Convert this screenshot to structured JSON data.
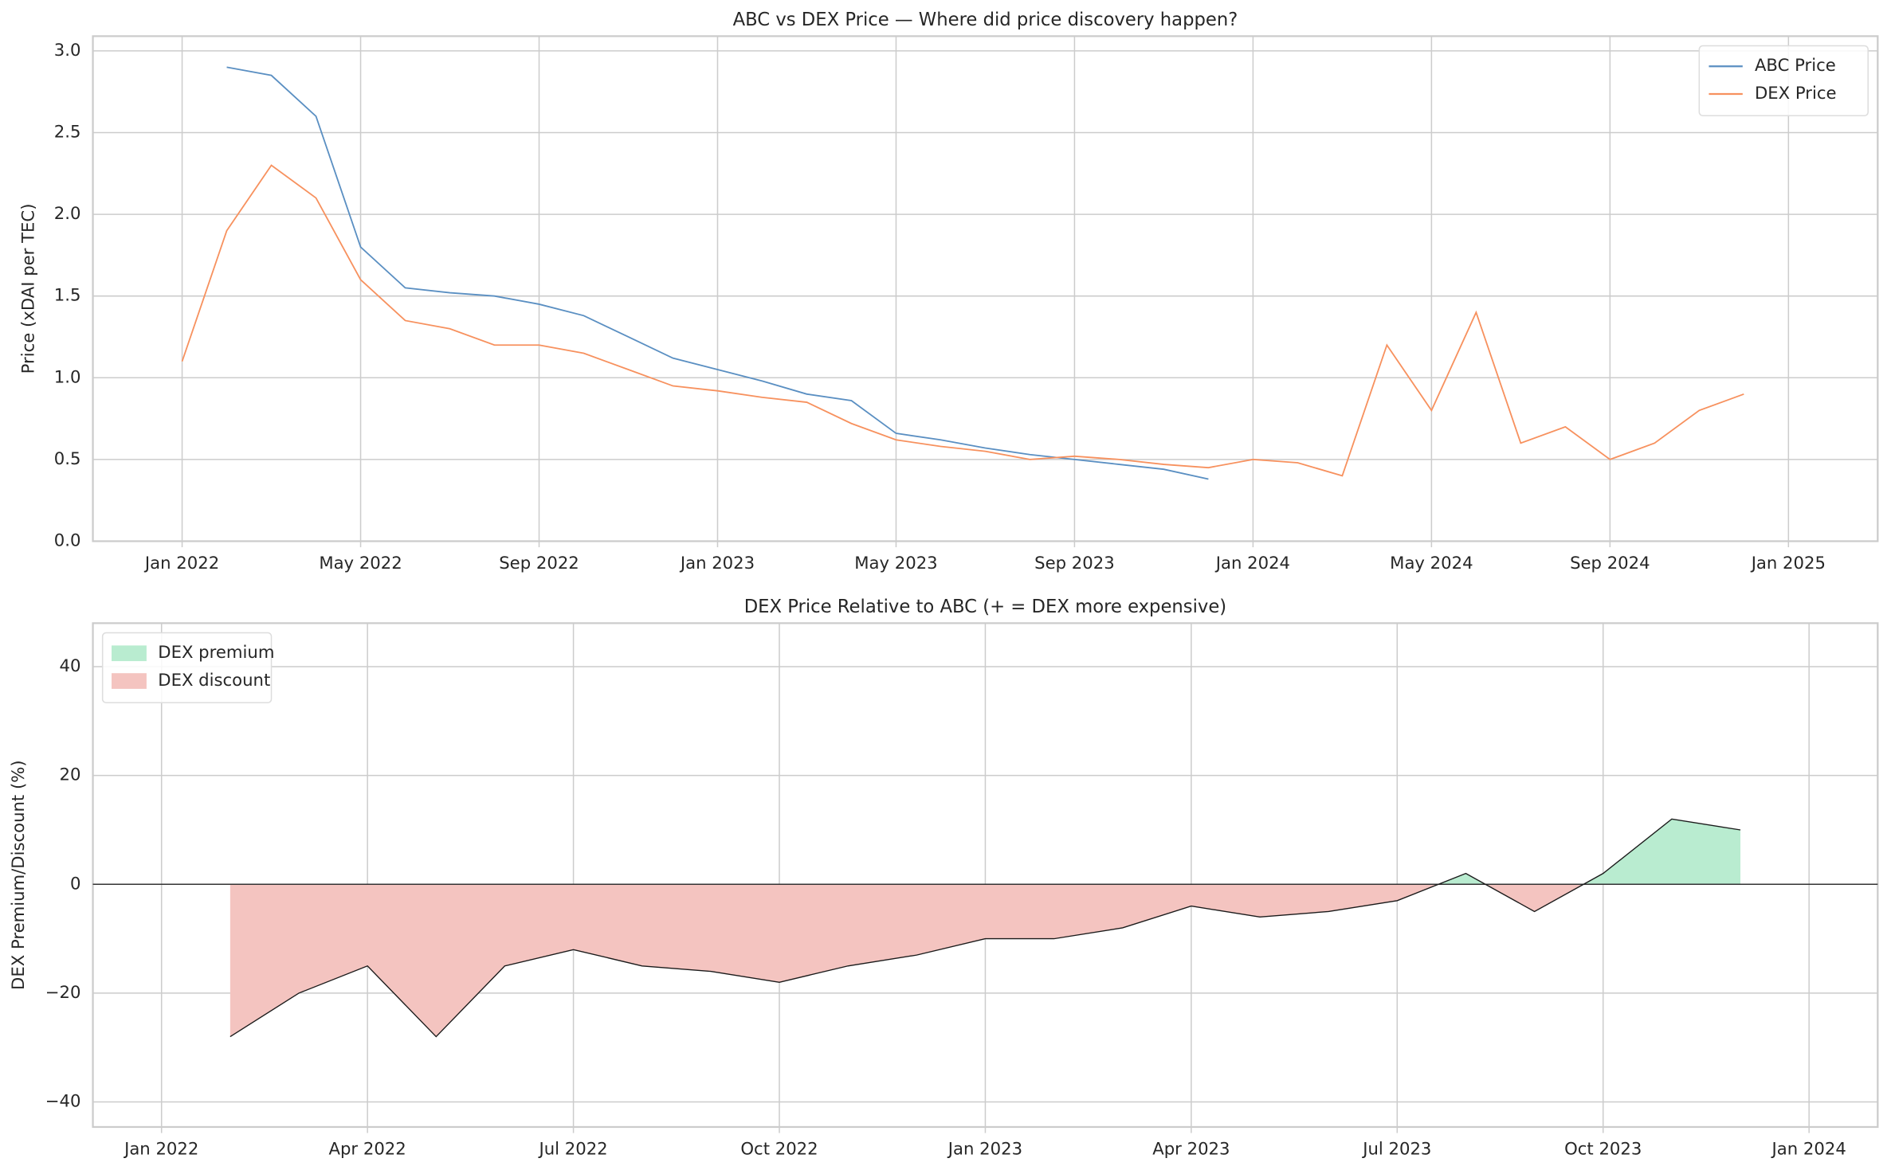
{
  "chart_data": [
    {
      "type": "line",
      "title": "ABC vs DEX Price — Where did price discovery happen?",
      "y_label": "Price (xDAI per TEC)",
      "x": [
        "2022-01",
        "2022-02",
        "2022-03",
        "2022-04",
        "2022-05",
        "2022-06",
        "2022-07",
        "2022-08",
        "2022-09",
        "2022-10",
        "2022-11",
        "2022-12",
        "2023-01",
        "2023-02",
        "2023-03",
        "2023-04",
        "2023-05",
        "2023-06",
        "2023-07",
        "2023-08",
        "2023-09",
        "2023-10",
        "2023-11",
        "2023-12",
        "2024-01",
        "2024-02",
        "2024-03",
        "2024-04",
        "2024-05",
        "2024-06",
        "2024-07",
        "2024-08",
        "2024-09",
        "2024-10",
        "2024-11",
        "2024-12"
      ],
      "series": [
        {
          "name": "ABC Price",
          "color": "#5a8fc2",
          "values": [
            null,
            2.9,
            2.85,
            2.6,
            1.8,
            1.55,
            1.52,
            1.5,
            1.45,
            1.38,
            1.25,
            1.12,
            1.05,
            0.98,
            0.9,
            0.86,
            0.66,
            0.62,
            0.57,
            0.53,
            0.5,
            0.47,
            0.44,
            0.38,
            null,
            null,
            null,
            null,
            null,
            null,
            null,
            null,
            null,
            null,
            null,
            null
          ]
        },
        {
          "name": "DEX Price",
          "color": "#f7915e",
          "values": [
            1.1,
            1.9,
            2.3,
            2.1,
            1.6,
            1.35,
            1.3,
            1.2,
            1.2,
            1.15,
            1.05,
            0.95,
            0.92,
            0.88,
            0.85,
            0.72,
            0.62,
            0.58,
            0.55,
            0.5,
            0.52,
            0.5,
            0.47,
            0.45,
            0.5,
            0.48,
            0.4,
            1.2,
            0.8,
            1.4,
            0.6,
            0.7,
            0.5,
            0.6,
            0.8,
            0.9
          ]
        }
      ],
      "xlim": [
        "2021-11",
        "2025-03"
      ],
      "xticks": [
        {
          "value": "2022-01",
          "label": "Jan 2022"
        },
        {
          "value": "2022-05",
          "label": "May 2022"
        },
        {
          "value": "2022-09",
          "label": "Sep 2022"
        },
        {
          "value": "2023-01",
          "label": "Jan 2023"
        },
        {
          "value": "2023-05",
          "label": "May 2023"
        },
        {
          "value": "2023-09",
          "label": "Sep 2023"
        },
        {
          "value": "2024-01",
          "label": "Jan 2024"
        },
        {
          "value": "2024-05",
          "label": "May 2024"
        },
        {
          "value": "2024-09",
          "label": "Sep 2024"
        },
        {
          "value": "2025-01",
          "label": "Jan 2025"
        }
      ],
      "ylim": [
        0,
        3.09
      ],
      "yticks": [
        {
          "value": 0,
          "label": "0.0"
        },
        {
          "value": 0.5,
          "label": "0.5"
        },
        {
          "value": 1,
          "label": "1.0"
        },
        {
          "value": 1.5,
          "label": "1.5"
        },
        {
          "value": 2,
          "label": "2.0"
        },
        {
          "value": 2.5,
          "label": "2.5"
        },
        {
          "value": 3,
          "label": "3.0"
        }
      ],
      "grid": true,
      "legend": "upper right"
    },
    {
      "type": "line",
      "title": "DEX Price Relative to ABC (+ = DEX more expensive)",
      "y_label": "DEX Premium/Discount (%)",
      "x": [
        "2022-02",
        "2022-03",
        "2022-04",
        "2022-05",
        "2022-06",
        "2022-07",
        "2022-08",
        "2022-09",
        "2022-10",
        "2022-11",
        "2022-12",
        "2023-01",
        "2023-02",
        "2023-03",
        "2023-04",
        "2023-05",
        "2023-06",
        "2023-07",
        "2023-08",
        "2023-09",
        "2023-10",
        "2023-11",
        "2023-12"
      ],
      "series": [
        {
          "color": "#1a1a1a",
          "values": [
            -28,
            -20,
            -15,
            -28,
            -15,
            -12,
            -15,
            -16,
            -18,
            -15,
            -13,
            -10,
            -10,
            -8,
            -4,
            -6,
            -5,
            -3,
            2,
            -5,
            2,
            12,
            10
          ]
        }
      ],
      "fills": [
        {
          "name": "DEX premium",
          "color": "#b9ecd0"
        },
        {
          "name": "DEX discount",
          "color": "#f4c4c0"
        }
      ],
      "xlim": [
        "2021-12",
        "2024-02"
      ],
      "xticks": [
        {
          "value": "2022-01",
          "label": "Jan 2022"
        },
        {
          "value": "2022-04",
          "label": "Apr 2022"
        },
        {
          "value": "2022-07",
          "label": "Jul 2022"
        },
        {
          "value": "2022-10",
          "label": "Oct 2022"
        },
        {
          "value": "2023-01",
          "label": "Jan 2023"
        },
        {
          "value": "2023-04",
          "label": "Apr 2023"
        },
        {
          "value": "2023-07",
          "label": "Jul 2023"
        },
        {
          "value": "2023-10",
          "label": "Oct 2023"
        },
        {
          "value": "2024-01",
          "label": "Jan 2024"
        }
      ],
      "ylim": [
        -44.6,
        48
      ],
      "yticks": [
        {
          "value": -40,
          "label": "−40"
        },
        {
          "value": -20,
          "label": "−20"
        },
        0,
        20,
        40
      ],
      "grid": true,
      "legend": "upper left"
    }
  ]
}
